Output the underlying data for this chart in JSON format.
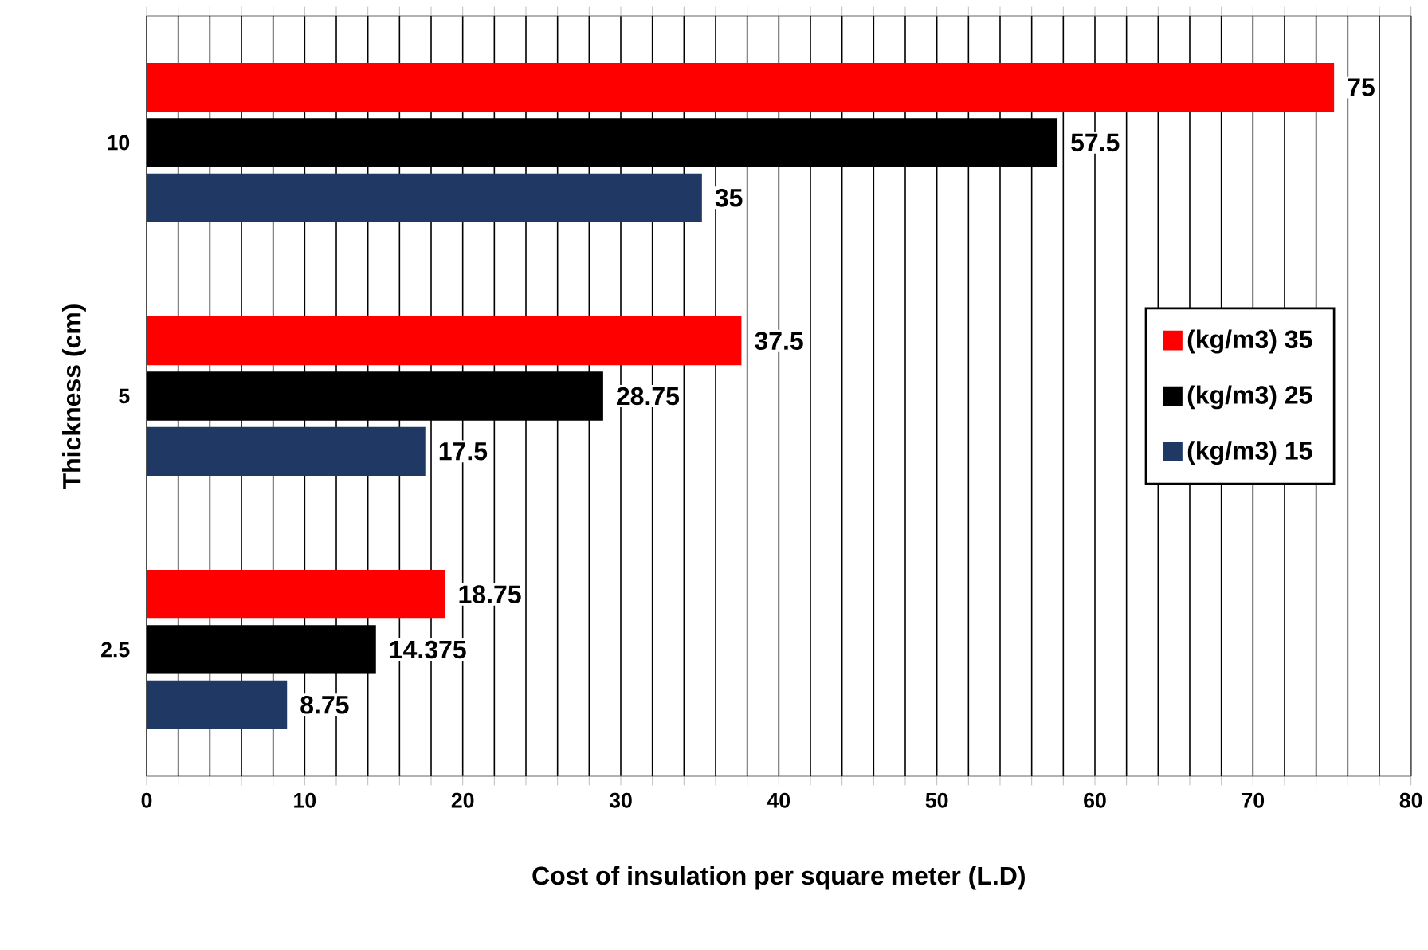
{
  "chart_data": {
    "type": "bar",
    "orientation": "horizontal",
    "categories": [
      "10",
      "5",
      "2.5"
    ],
    "series": [
      {
        "name": "(kg/m3) 35",
        "color": "#ff0000",
        "values": [
          75,
          37.5,
          18.75
        ]
      },
      {
        "name": "(kg/m3) 25",
        "color": "#000000",
        "values": [
          57.5,
          28.75,
          14.375
        ]
      },
      {
        "name": "(kg/m3) 15",
        "color": "#1f3864",
        "values": [
          35,
          17.5,
          8.75
        ]
      }
    ],
    "xlabel": "Cost of insulation per square meter (L.D)",
    "ylabel": "Thickness (cm)",
    "xlim": [
      0,
      80
    ],
    "xticks": [
      0,
      {
        "value": 2,
        "label": null
      },
      {
        "value": 4,
        "label": null
      },
      {
        "value": 6,
        "label": null
      },
      {
        "value": 8,
        "label": null
      },
      10,
      {
        "value": 12,
        "label": null
      },
      {
        "value": 14,
        "label": null
      },
      {
        "value": 16,
        "label": null
      },
      {
        "value": 18,
        "label": null
      },
      20,
      {
        "value": 22,
        "label": null
      },
      {
        "value": 24,
        "label": null
      },
      {
        "value": 26,
        "label": null
      },
      {
        "value": 28,
        "label": null
      },
      30,
      {
        "value": 32,
        "label": null
      },
      {
        "value": 34,
        "label": null
      },
      {
        "value": 36,
        "label": null
      },
      {
        "value": 38,
        "label": null
      },
      40,
      {
        "value": 42,
        "label": null
      },
      {
        "value": 44,
        "label": null
      },
      {
        "value": 46,
        "label": null
      },
      {
        "value": 48,
        "label": null
      },
      50,
      {
        "value": 52,
        "label": null
      },
      {
        "value": 54,
        "label": null
      },
      {
        "value": 56,
        "label": null
      },
      {
        "value": 58,
        "label": null
      },
      60,
      {
        "value": 62,
        "label": null
      },
      {
        "value": 64,
        "label": null
      },
      {
        "value": 66,
        "label": null
      },
      {
        "value": 68,
        "label": null
      },
      70,
      {
        "value": 72,
        "label": null
      },
      {
        "value": 74,
        "label": null
      },
      {
        "value": 76,
        "label": null
      },
      {
        "value": 78,
        "label": null
      },
      80
    ],
    "grid": "x",
    "legend": "right",
    "data_labels": true
  }
}
